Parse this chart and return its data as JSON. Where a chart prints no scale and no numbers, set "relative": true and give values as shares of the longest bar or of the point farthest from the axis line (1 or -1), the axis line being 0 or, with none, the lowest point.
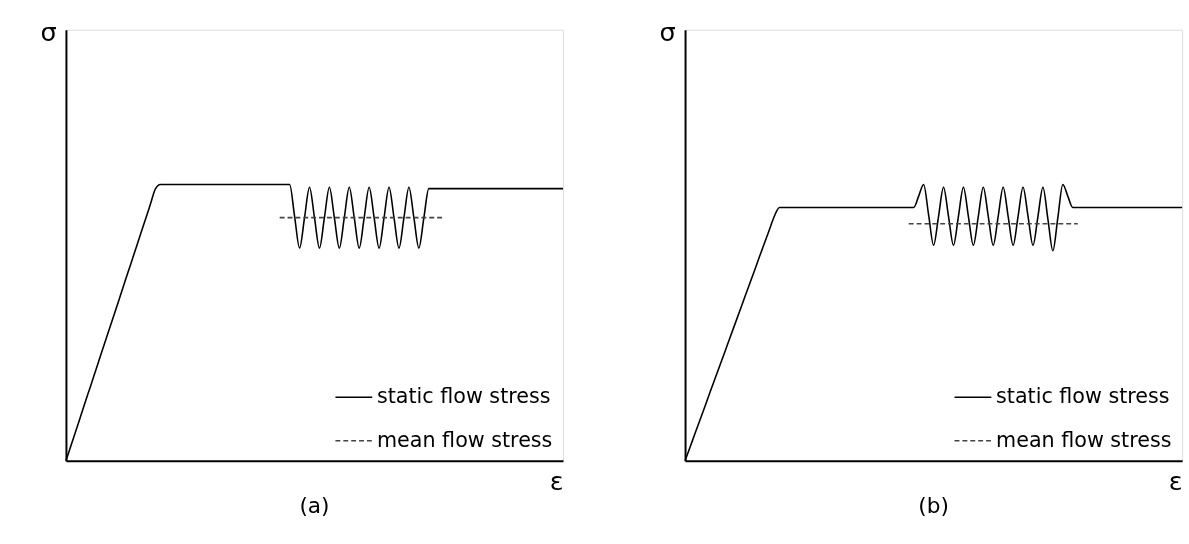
{
  "chart_data": [
    {
      "type": "line",
      "title": "(a)",
      "xlabel": "ε",
      "ylabel": "σ",
      "relative": true,
      "tick_labels": false,
      "grid": false,
      "legend": "bottom right",
      "marker": "none",
      "categories": [
        null,
        null,
        null,
        null,
        null,
        null,
        null,
        null,
        null,
        null,
        null,
        null,
        null,
        null,
        null,
        null,
        null,
        null,
        null,
        null,
        null,
        null,
        null,
        null,
        null,
        null,
        null,
        null,
        null,
        null,
        null,
        null,
        null,
        null,
        null,
        null,
        null,
        null,
        null,
        null,
        null,
        null,
        null,
        null,
        null,
        null,
        null,
        null,
        null,
        null,
        null,
        null,
        null,
        null,
        null,
        null,
        null,
        null,
        null,
        null,
        null,
        null,
        null,
        null,
        null,
        null,
        null,
        null,
        null,
        null,
        null,
        null,
        null,
        null,
        null,
        null,
        null,
        null,
        null,
        null,
        null,
        null,
        null,
        null,
        null,
        null,
        null,
        null,
        null,
        null,
        null,
        null,
        null,
        null,
        null,
        null,
        null,
        null,
        null,
        null,
        null
      ],
      "series": [
        {
          "name": "static flow stress",
          "color": "#000000",
          "line_style": "solid",
          "values": [
            0,
            0.055,
            0.109,
            0.164,
            0.219,
            0.273,
            0.328,
            0.383,
            0.437,
            0.492,
            0.546,
            0.601,
            0.656,
            0.71,
            0.765,
            0.82,
            0.874,
            0.929,
            0.984,
            1,
            1,
            1,
            1,
            1,
            1,
            1,
            1,
            1,
            1,
            1,
            1,
            1,
            1,
            1,
            1,
            1,
            1,
            1,
            1,
            1,
            1,
            1,
            1,
            1,
            1,
            1,
            0.885,
            0.77,
            0.88,
            0.99,
            0.88,
            0.77,
            0.88,
            0.99,
            0.88,
            0.77,
            0.88,
            0.99,
            0.88,
            0.77,
            0.88,
            0.99,
            0.88,
            0.77,
            0.88,
            0.99,
            0.88,
            0.77,
            0.88,
            0.99,
            0.88,
            0.77,
            0.878,
            0.985,
            0.985,
            0.985,
            0.985,
            0.985,
            0.985,
            0.985,
            0.985,
            0.985,
            0.985,
            0.985,
            0.985,
            0.985,
            0.985,
            0.985,
            0.985,
            0.985,
            0.985,
            0.985,
            0.985,
            0.985,
            0.985,
            0.985,
            0.985,
            0.985,
            0.985,
            0.985,
            0.985
          ]
        },
        {
          "name": "mean flow stress",
          "color": "#444444",
          "line_style": "dashed",
          "values": [
            null,
            null,
            null,
            null,
            null,
            null,
            null,
            null,
            null,
            null,
            null,
            null,
            null,
            null,
            null,
            null,
            null,
            null,
            null,
            null,
            null,
            null,
            null,
            null,
            null,
            null,
            null,
            null,
            null,
            null,
            null,
            null,
            null,
            null,
            null,
            null,
            null,
            null,
            null,
            null,
            null,
            null,
            null,
            0.88,
            0.88,
            0.88,
            0.88,
            0.88,
            0.88,
            0.88,
            0.88,
            0.88,
            0.88,
            0.88,
            0.88,
            0.88,
            0.88,
            0.88,
            0.88,
            0.88,
            0.88,
            0.88,
            0.88,
            0.88,
            0.88,
            0.88,
            0.88,
            0.88,
            0.88,
            0.88,
            0.88,
            0.88,
            0.88,
            0.88,
            0.88,
            0.88,
            0.88,
            null,
            null,
            null,
            null,
            null,
            null,
            null,
            null,
            null,
            null,
            null,
            null,
            null,
            null,
            null,
            null,
            null,
            null,
            null,
            null,
            null,
            null,
            null,
            null
          ]
        }
      ]
    },
    {
      "type": "line",
      "title": "(b)",
      "xlabel": "ε",
      "ylabel": "σ",
      "relative": true,
      "tick_labels": false,
      "grid": false,
      "legend": "bottom right",
      "marker": "none",
      "categories": [
        null,
        null,
        null,
        null,
        null,
        null,
        null,
        null,
        null,
        null,
        null,
        null,
        null,
        null,
        null,
        null,
        null,
        null,
        null,
        null,
        null,
        null,
        null,
        null,
        null,
        null,
        null,
        null,
        null,
        null,
        null,
        null,
        null,
        null,
        null,
        null,
        null,
        null,
        null,
        null,
        null,
        null,
        null,
        null,
        null,
        null,
        null,
        null,
        null,
        null,
        null,
        null,
        null,
        null,
        null,
        null,
        null,
        null,
        null,
        null,
        null,
        null,
        null,
        null,
        null,
        null,
        null,
        null,
        null,
        null,
        null,
        null,
        null,
        null,
        null,
        null,
        null,
        null,
        null,
        null,
        null,
        null,
        null,
        null,
        null,
        null,
        null,
        null,
        null,
        null,
        null,
        null,
        null,
        null,
        null,
        null,
        null,
        null,
        null,
        null,
        null
      ],
      "series": [
        {
          "name": "static flow stress",
          "color": "#000000",
          "line_style": "solid",
          "values": [
            0,
            0.049,
            0.099,
            0.148,
            0.197,
            0.247,
            0.296,
            0.345,
            0.394,
            0.444,
            0.493,
            0.542,
            0.592,
            0.641,
            0.69,
            0.74,
            0.789,
            0.838,
            0.887,
            0.917,
            0.917,
            0.917,
            0.917,
            0.917,
            0.917,
            0.917,
            0.917,
            0.917,
            0.917,
            0.917,
            0.917,
            0.917,
            0.917,
            0.917,
            0.917,
            0.917,
            0.917,
            0.917,
            0.917,
            0.917,
            0.917,
            0.917,
            0.917,
            0.917,
            0.917,
            0.917,
            0.917,
            0.958,
            1.0,
            0.89,
            0.78,
            0.885,
            0.99,
            0.885,
            0.78,
            0.885,
            0.99,
            0.885,
            0.78,
            0.885,
            0.99,
            0.885,
            0.78,
            0.885,
            0.99,
            0.885,
            0.78,
            0.885,
            0.99,
            0.885,
            0.78,
            0.885,
            0.99,
            0.875,
            0.76,
            0.88,
            1.0,
            0.958,
            0.917,
            0.917,
            0.917,
            0.917,
            0.917,
            0.917,
            0.917,
            0.917,
            0.917,
            0.917,
            0.917,
            0.917,
            0.917,
            0.917,
            0.917,
            0.917,
            0.917,
            0.917,
            0.917,
            0.917,
            0.917,
            0.917,
            0.917
          ]
        },
        {
          "name": "mean flow stress",
          "color": "#444444",
          "line_style": "dashed",
          "values": [
            null,
            null,
            null,
            null,
            null,
            null,
            null,
            null,
            null,
            null,
            null,
            null,
            null,
            null,
            null,
            null,
            null,
            null,
            null,
            null,
            null,
            null,
            null,
            null,
            null,
            null,
            null,
            null,
            null,
            null,
            null,
            null,
            null,
            null,
            null,
            null,
            null,
            null,
            null,
            null,
            null,
            null,
            null,
            null,
            null,
            0.858,
            0.858,
            0.858,
            0.858,
            0.858,
            0.858,
            0.858,
            0.858,
            0.858,
            0.858,
            0.858,
            0.858,
            0.858,
            0.858,
            0.858,
            0.858,
            0.858,
            0.858,
            0.858,
            0.858,
            0.858,
            0.858,
            0.858,
            0.858,
            0.858,
            0.858,
            0.858,
            0.858,
            0.858,
            0.858,
            0.858,
            0.858,
            0.858,
            0.858,
            0.858,
            null,
            null,
            null,
            null,
            null,
            null,
            null,
            null,
            null,
            null,
            null,
            null,
            null,
            null,
            null,
            null,
            null,
            null,
            null,
            null,
            null
          ]
        }
      ]
    }
  ]
}
